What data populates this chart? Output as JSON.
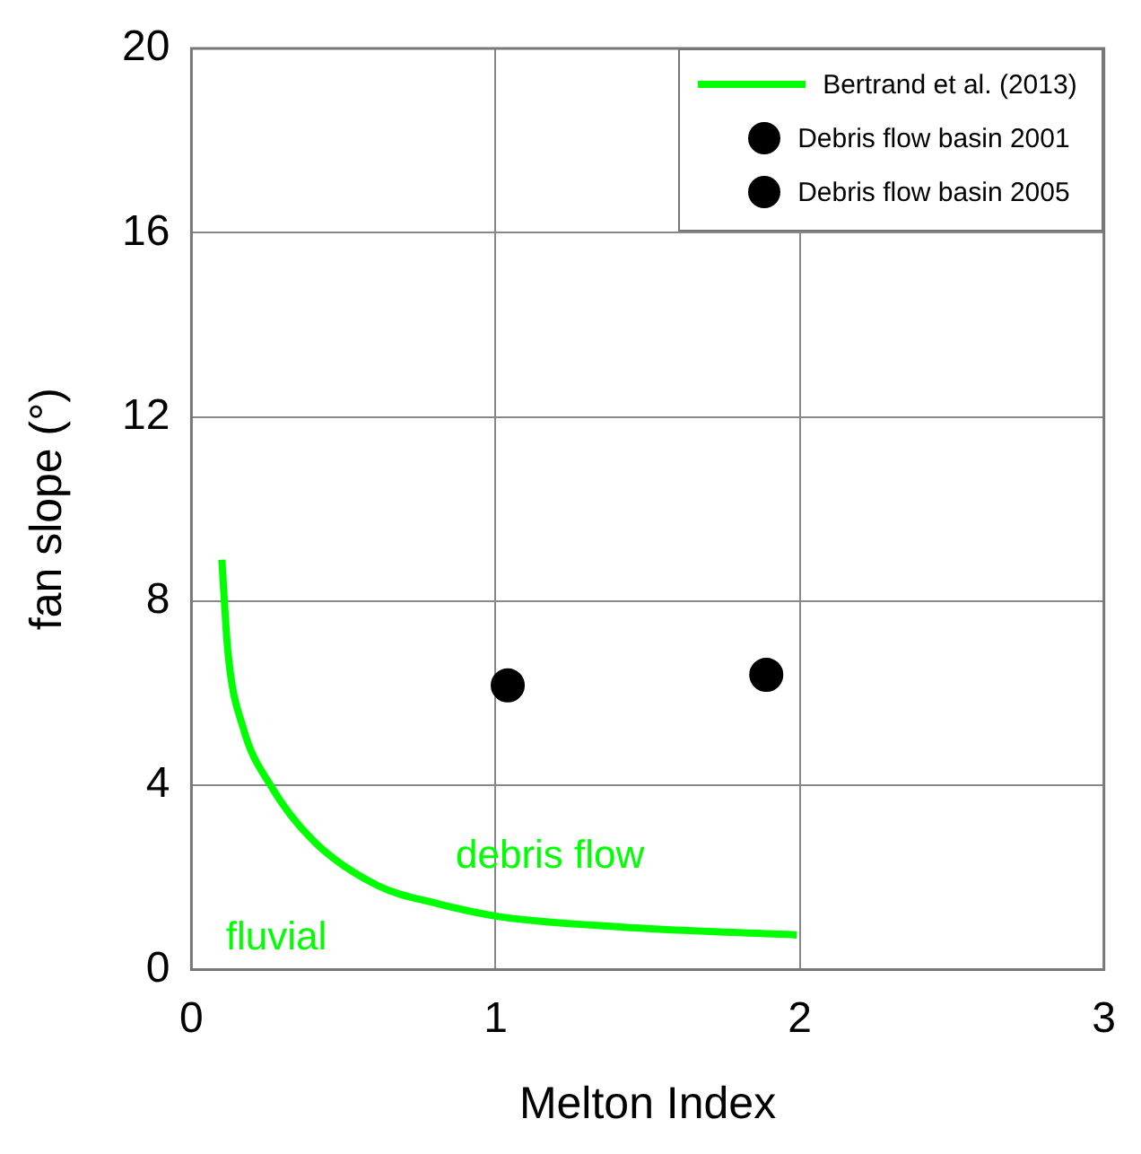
{
  "chart_data": {
    "type": "scatter",
    "xlabel": "Melton Index",
    "ylabel": "fan slope (°)",
    "xlim": [
      0,
      3
    ],
    "xticks": [
      0,
      1,
      2,
      3
    ],
    "ylim": [
      0,
      20
    ],
    "yticks": [
      0,
      4,
      8,
      12,
      16,
      20
    ],
    "grid": true,
    "legend": "top right",
    "series": [
      {
        "name": "Bertrand et al. (2013)",
        "type": "line",
        "color": "#00ff00",
        "marker": "none",
        "line_style": "solid",
        "x": [
          0.1,
          0.12,
          0.17,
          0.26,
          0.4,
          0.61,
          0.81,
          1.01,
          1.42,
          1.99
        ],
        "values": [
          8.9,
          6.9,
          5.25,
          4.0,
          2.8,
          1.83,
          1.43,
          1.15,
          0.92,
          0.75
        ]
      },
      {
        "name": "Debris flow basin 2001",
        "type": "scatter",
        "color": "#000000",
        "marker": "circle",
        "x": [
          1.04
        ],
        "values": [
          6.17
        ]
      },
      {
        "name": "Debris flow basin 2005",
        "type": "scatter",
        "color": "#000000",
        "marker": "circle",
        "x": [
          1.89
        ],
        "values": [
          6.4
        ]
      }
    ],
    "annotations": [
      "debris flow",
      "fluvial"
    ]
  }
}
